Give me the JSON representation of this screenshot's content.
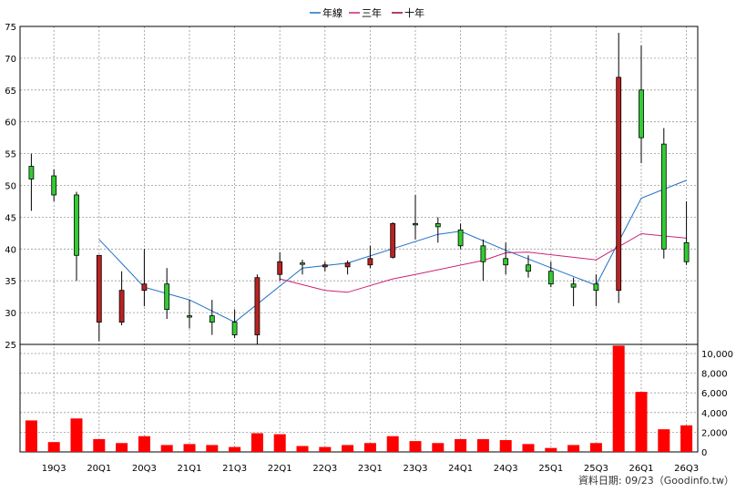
{
  "legend": [
    {
      "label": "年線",
      "color": "#1f6fc5"
    },
    {
      "label": "三年",
      "color": "#cc2277"
    },
    {
      "label": "十年",
      "color": "#990033"
    }
  ],
  "footer": "資料日期: 09/23（Goodinfo.tw）",
  "chart_data": {
    "type": "candlestick+volume",
    "x_tick_labels": [
      "19Q3",
      "20Q1",
      "20Q3",
      "21Q1",
      "21Q3",
      "22Q1",
      "22Q3",
      "23Q1",
      "23Q3",
      "24Q1",
      "24Q3",
      "25Q1",
      "25Q3",
      "26Q1",
      "26Q3"
    ],
    "price_axis": {
      "min": 25,
      "max": 75,
      "ticks": [
        25,
        30,
        35,
        40,
        45,
        50,
        55,
        60,
        65,
        70,
        75
      ]
    },
    "volume_axis": {
      "min": 0,
      "max": 10000,
      "ticks": [
        0,
        2000,
        4000,
        6000,
        8000,
        10000
      ],
      "tick_labels": [
        "0",
        "2,000",
        "4,000",
        "6,000",
        "8,000",
        "10,000"
      ]
    },
    "candles": [
      {
        "open": 51,
        "high": 55,
        "low": 46,
        "close": 53
      },
      {
        "open": 48.5,
        "high": 52.5,
        "low": 47.5,
        "close": 51.5
      },
      {
        "open": 39,
        "high": 49,
        "low": 35,
        "close": 48.5
      },
      {
        "open": 39,
        "high": 39,
        "low": 25.5,
        "close": 28.5
      },
      {
        "open": 33.5,
        "high": 36.5,
        "low": 28,
        "close": 28.5
      },
      {
        "open": 34.5,
        "high": 40,
        "low": 31,
        "close": 33.5
      },
      {
        "open": 30.5,
        "high": 37,
        "low": 29,
        "close": 34.5
      },
      {
        "open": 29.5,
        "high": 32,
        "low": 27.5,
        "close": 29.5
      },
      {
        "open": 28.5,
        "high": 32,
        "low": 26.5,
        "close": 29.5
      },
      {
        "open": 26.5,
        "high": 30.5,
        "low": 26,
        "close": 28.5
      },
      {
        "open": 35.5,
        "high": 36,
        "low": 25,
        "close": 26.5
      },
      {
        "open": 38,
        "high": 39.5,
        "low": 35,
        "close": 36
      },
      {
        "open": 37.8,
        "high": 38.3,
        "low": 36,
        "close": 37.8
      },
      {
        "open": 37.5,
        "high": 38,
        "low": 36.5,
        "close": 37.2
      },
      {
        "open": 37.8,
        "high": 38.2,
        "low": 36,
        "close": 37.2
      },
      {
        "open": 38.5,
        "high": 40.5,
        "low": 37,
        "close": 37.5
      },
      {
        "open": 44,
        "high": 44.2,
        "low": 38.5,
        "close": 38.7
      },
      {
        "open": 44,
        "high": 48.5,
        "low": 41.5,
        "close": 44
      },
      {
        "open": 43.5,
        "high": 45,
        "low": 41,
        "close": 44
      },
      {
        "open": 40.5,
        "high": 44,
        "low": 40,
        "close": 43
      },
      {
        "open": 38,
        "high": 41.5,
        "low": 35,
        "close": 40.5
      },
      {
        "open": 37.5,
        "high": 41,
        "low": 36,
        "close": 38.5
      },
      {
        "open": 36.5,
        "high": 39,
        "low": 35.5,
        "close": 37.5
      },
      {
        "open": 34.5,
        "high": 38,
        "low": 34,
        "close": 36.5
      },
      {
        "open": 34,
        "high": 35.5,
        "low": 31,
        "close": 34.5
      },
      {
        "open": 33.5,
        "high": 36,
        "low": 31,
        "close": 34.5
      },
      {
        "open": 67,
        "high": 74,
        "low": 31.5,
        "close": 33.5
      },
      {
        "open": 57.5,
        "high": 72,
        "low": 53.5,
        "close": 65
      },
      {
        "open": 40,
        "high": 59,
        "low": 38.5,
        "close": 56.5
      },
      {
        "open": 38,
        "high": 47.5,
        "low": 37.5,
        "close": 41
      }
    ],
    "volume": [
      3200,
      1000,
      3400,
      1300,
      900,
      1600,
      700,
      800,
      700,
      500,
      1900,
      1800,
      600,
      500,
      700,
      900,
      1600,
      1100,
      900,
      1300,
      1300,
      1200,
      800,
      400,
      700,
      900,
      10800,
      6100,
      2300,
      2700
    ],
    "series": [
      {
        "name": "年線",
        "color": "#1f6fc5",
        "values": [
          null,
          null,
          null,
          41.5,
          null,
          34,
          null,
          32,
          null,
          28.5,
          null,
          null,
          37,
          null,
          37.8,
          null,
          null,
          null,
          42.3,
          42.8,
          null,
          39.8,
          null,
          null,
          null,
          34.3,
          null,
          48,
          null,
          50.8
        ]
      },
      {
        "name": "三年",
        "color": "#cc2277",
        "values": [
          null,
          null,
          null,
          null,
          null,
          null,
          null,
          null,
          null,
          null,
          null,
          35.3,
          null,
          33.5,
          33.2,
          null,
          35.3,
          36,
          null,
          null,
          38.2,
          39.4,
          39.5,
          null,
          null,
          38.3,
          null,
          42.4,
          null,
          41.7
        ]
      }
    ],
    "gridlines": true
  }
}
